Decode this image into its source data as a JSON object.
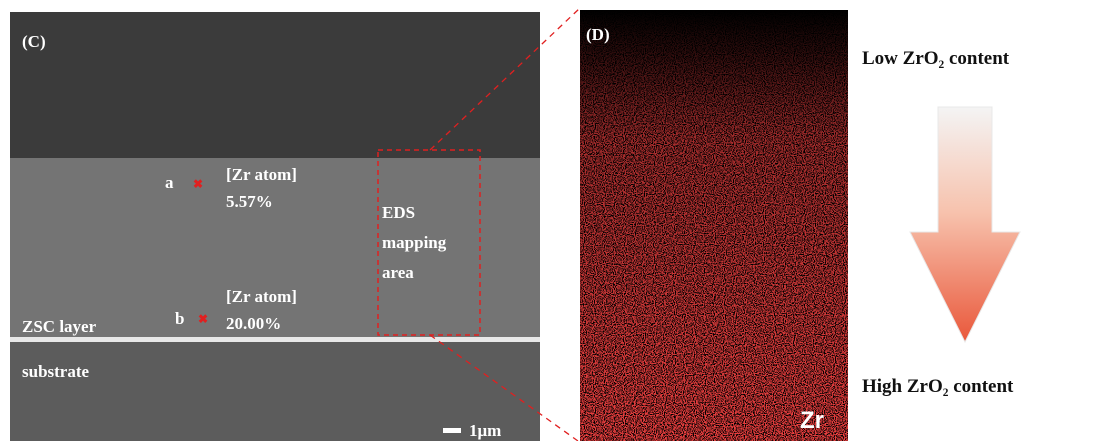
{
  "panel_c": {
    "label": "(C)",
    "point_a": {
      "name": "a",
      "heading": "[Zr atom]",
      "value": "5.57%"
    },
    "point_b": {
      "name": "b",
      "heading": "[Zr atom]",
      "value": "20.00%"
    },
    "mapping_area": [
      "EDS",
      "mapping",
      "area"
    ],
    "layer_label": "ZSC layer",
    "substrate_label": "substrate",
    "scale_bar": "1μm"
  },
  "panel_d": {
    "label": "(D)",
    "element": "Zr"
  },
  "legend": {
    "top": "Low ZrO₂ content",
    "bottom": "High ZrO₂ content"
  }
}
